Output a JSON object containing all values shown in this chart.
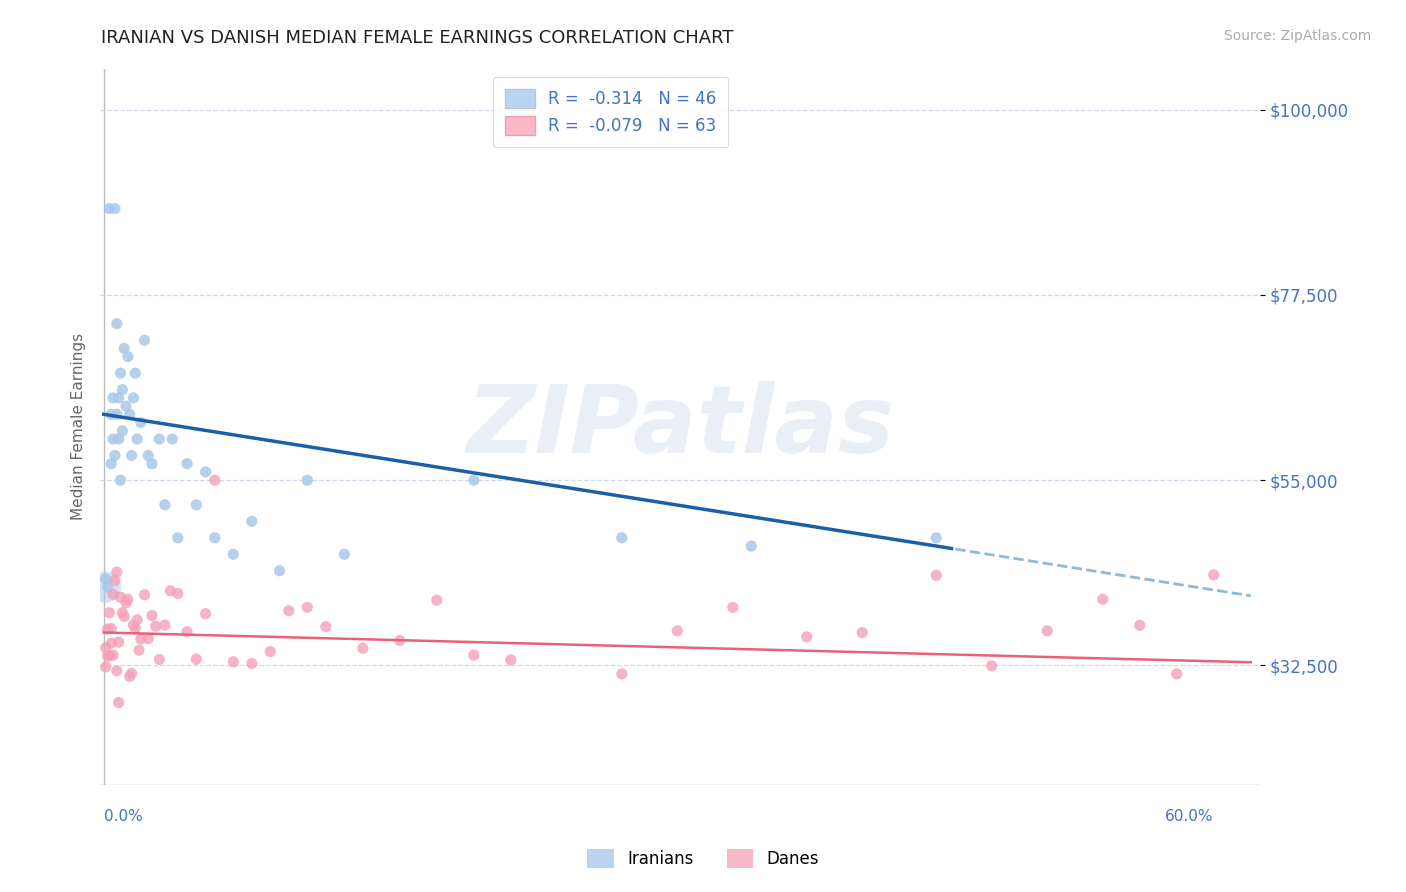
{
  "title": "IRANIAN VS DANISH MEDIAN FEMALE EARNINGS CORRELATION CHART",
  "source": "Source: ZipAtlas.com",
  "ylabel": "Median Female Earnings",
  "ytick_labels": [
    "$32,500",
    "$55,000",
    "$77,500",
    "$100,000"
  ],
  "ytick_values": [
    32500,
    55000,
    77500,
    100000
  ],
  "ymin": 18000,
  "ymax": 105000,
  "xmin": -0.002,
  "xmax": 0.625,
  "iranian_color": "#a8c8e8",
  "danish_color": "#f4a0b8",
  "iranian_line_solid_color": "#1a5fa8",
  "iranian_line_dash_color": "#90b8d8",
  "danish_line_color": "#e8607a",
  "title_color": "#222222",
  "axis_label_color": "#4472c4",
  "grid_color": "#d0d8e8",
  "background_color": "#ffffff",
  "watermark": "ZIPatlas",
  "legend_text_color_blue": "#4472c4",
  "legend_text_color_pink": "#c04070"
}
